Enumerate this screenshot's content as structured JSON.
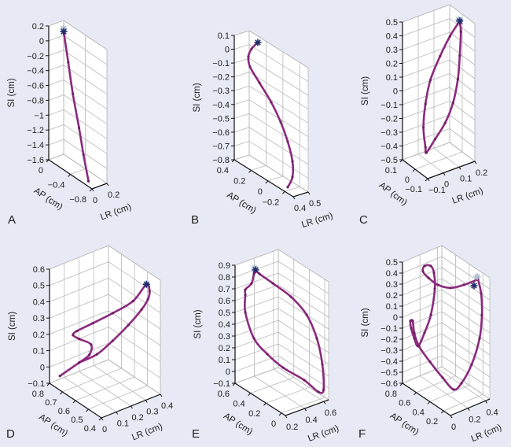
{
  "colors": {
    "background": "#e7eaf4",
    "wall": "#ffffff",
    "grid": "#b9b9b9",
    "axis": "#111111",
    "trajectory": "#8c2a7d",
    "start_star": "#a9bccd",
    "end_star": "#1f2a6b"
  },
  "chart_data": [
    {
      "type": "line3d",
      "panel_label": "A",
      "si": {
        "label": "SI (cm)",
        "range": [
          -1.6,
          0.2
        ],
        "ticks": [
          0.2,
          0,
          -0.2,
          -0.4,
          -0.6,
          -0.8,
          -1,
          -1.2,
          -1.4,
          -1.6
        ],
        "tick_labels": [
          "0.2",
          "0",
          "−0.2",
          "−0.4",
          "−0.6",
          "−0.8",
          "−1",
          "−1.2",
          "−1.4",
          "−1.6"
        ]
      },
      "ap": {
        "label": "AP (cm)",
        "range": [
          0,
          -0.8
        ],
        "ticks": [
          0,
          -0.4,
          -0.8
        ],
        "tick_labels": [
          "0",
          "−0.4",
          "−0.8"
        ]
      },
      "lr": {
        "label": "LR (cm)",
        "range": [
          0,
          0.2
        ],
        "ticks": [
          0,
          0.2
        ],
        "tick_labels": [
          "0",
          "0.2"
        ]
      },
      "grid": true,
      "trajectory": [
        [
          0.2,
          0,
          0.05
        ],
        [
          0.16,
          -0.14,
          -0.28
        ],
        [
          0.12,
          -0.28,
          -0.62
        ],
        [
          0.08,
          -0.45,
          -0.98
        ],
        [
          0.06,
          -0.56,
          -1.28
        ],
        [
          0.04,
          -0.68,
          -1.57
        ]
      ],
      "markers": [
        {
          "type": "light-star",
          "point": [
            0.2,
            0,
            0.09
          ]
        },
        {
          "type": "dark-star",
          "point": [
            0.2,
            0,
            0.05
          ]
        }
      ]
    },
    {
      "type": "line3d",
      "panel_label": "B",
      "si": {
        "label": "SI (cm)",
        "range": [
          -0.8,
          0.1
        ],
        "ticks": [
          0.1,
          0,
          -0.1,
          -0.2,
          -0.3,
          -0.4,
          -0.5,
          -0.6,
          -0.7,
          -0.8
        ],
        "tick_labels": [
          "0.1",
          "0",
          "−0.1",
          "−0.2",
          "−0.3",
          "−0.4",
          "−0.5",
          "−0.6",
          "−0.7",
          "−0.8"
        ]
      },
      "ap": {
        "label": "AP (cm)",
        "range": [
          0.4,
          -0.3
        ],
        "ticks": [
          0.4,
          0.2,
          0,
          -0.2
        ],
        "tick_labels": [
          "0.4",
          "0.2",
          "0",
          "−0.2"
        ]
      },
      "lr": {
        "label": "LR (cm)",
        "range": [
          0.4,
          0.5
        ],
        "ticks": [
          0.4,
          0.5
        ],
        "tick_labels": [
          "0.4",
          "0.5"
        ]
      },
      "grid": true,
      "trajectory": [
        [
          0.45,
          0.209,
          0.105
        ],
        [
          0.45,
          0.283,
          0.031
        ],
        [
          0.45,
          0.321,
          -0.04
        ],
        [
          0.45,
          0.302,
          -0.107
        ],
        [
          0.45,
          0.19,
          -0.179
        ],
        [
          0.45,
          0.05,
          -0.267
        ],
        [
          0.45,
          -0.062,
          -0.367
        ],
        [
          0.45,
          -0.146,
          -0.477
        ],
        [
          0.45,
          -0.202,
          -0.598
        ],
        [
          0.45,
          -0.202,
          -0.712
        ],
        [
          0.45,
          -0.146,
          -0.807
        ]
      ],
      "markers": [
        {
          "type": "dark-star",
          "point": [
            0.45,
            0.209,
            0.105
          ]
        }
      ]
    },
    {
      "type": "line3d",
      "panel_label": "C",
      "si": {
        "label": "SI (cm)",
        "range": [
          -0.5,
          0.5
        ],
        "ticks": [
          0.5,
          0.4,
          0.3,
          0.2,
          0.1,
          0,
          -0.1,
          -0.2,
          -0.3,
          -0.4,
          -0.5
        ],
        "tick_labels": [
          "0.5",
          "0.4",
          "0.3",
          "0.2",
          "0.1",
          "0",
          "−0.1",
          "−0.2",
          "−0.3",
          "−0.4",
          "−0.5"
        ]
      },
      "ap": {
        "label": "AP (cm)",
        "range": [
          0.1,
          -0.1
        ],
        "ticks": [
          0.1,
          0,
          -0.1
        ],
        "tick_labels": [
          "0.1",
          "0",
          "−0.1"
        ]
      },
      "lr": {
        "label": "LR (cm)",
        "range": [
          -0.1,
          0.2
        ],
        "ticks": [
          -0.1,
          0,
          0.1,
          0.2
        ],
        "tick_labels": [
          "−0.1",
          "0",
          "0.1",
          "0.2"
        ]
      },
      "grid": true,
      "trajectory": [
        [
          0.184,
          0,
          0.457
        ],
        [
          0.122,
          0,
          0.373
        ],
        [
          0.059,
          0,
          0.254
        ],
        [
          -0.003,
          0,
          0.106
        ],
        [
          -0.034,
          0,
          -0.054
        ],
        [
          -0.047,
          0,
          -0.22
        ],
        [
          -0.034,
          0,
          -0.368
        ],
        [
          -0.028,
          0,
          -0.41
        ],
        [
          0.028,
          0,
          -0.334
        ],
        [
          0.091,
          0,
          -0.244
        ],
        [
          0.141,
          0,
          -0.12
        ],
        [
          0.172,
          0,
          0.039
        ],
        [
          0.184,
          0,
          0.206
        ],
        [
          0.191,
          0,
          0.375
        ],
        [
          0.184,
          0,
          0.457
        ]
      ],
      "markers": [
        {
          "type": "light-star",
          "point": [
            0.178,
            0,
            0.47
          ]
        },
        {
          "type": "dark-star",
          "point": [
            0.184,
            0,
            0.457
          ]
        }
      ]
    },
    {
      "type": "line3d",
      "panel_label": "D",
      "si": {
        "label": "SI (cm)",
        "range": [
          -0.1,
          0.6
        ],
        "ticks": [
          0.6,
          0.5,
          0.4,
          0.3,
          0.2,
          0.1,
          0,
          -0.1
        ],
        "tick_labels": [
          "0.6",
          "0.5",
          "0.4",
          "0.3",
          "0.2",
          "0.1",
          "0",
          "−0.1"
        ]
      },
      "ap": {
        "label": "AP (cm)",
        "range": [
          0.8,
          0.4
        ],
        "ticks": [
          0.8,
          0.7,
          0.6,
          0.5,
          0.4
        ],
        "tick_labels": [
          "0.8",
          "0.7",
          "0.6",
          "0.5",
          "0.4"
        ]
      },
      "lr": {
        "label": "LR (cm)",
        "range": [
          0,
          0.4
        ],
        "ticks": [
          0,
          0.1,
          0.2,
          0.3,
          0.4
        ],
        "tick_labels": [
          "0",
          "0.1",
          "0.2",
          "0.3",
          "0.4"
        ]
      },
      "grid": true,
      "trajectory": [
        [
          0,
          0.72,
          -0.013
        ],
        [
          0.131,
          0.72,
          0.022
        ],
        [
          0.2,
          0.72,
          0.045
        ],
        [
          0.211,
          0.72,
          0.104
        ],
        [
          0.131,
          0.72,
          0.167
        ],
        [
          0.089,
          0.72,
          0.206
        ],
        [
          0.115,
          0.72,
          0.221
        ],
        [
          0.222,
          0.72,
          0.23
        ],
        [
          0.36,
          0.72,
          0.243
        ],
        [
          0.356,
          0.56,
          0.403
        ],
        [
          0.376,
          0.48,
          0.541
        ],
        [
          0.397,
          0.48,
          0.49
        ],
        [
          0.386,
          0.48,
          0.445
        ],
        [
          0.343,
          0.48,
          0.398
        ],
        [
          0.253,
          0.48,
          0.335
        ],
        [
          0.146,
          0.48,
          0.277
        ],
        [
          0.04,
          0.48,
          0.233
        ],
        [
          0.131,
          0.72,
          0.022
        ]
      ],
      "markers": [
        {
          "type": "dark-star",
          "point": [
            0.376,
            0.48,
            0.541
          ]
        }
      ]
    },
    {
      "type": "line3d",
      "panel_label": "E",
      "si": {
        "label": "SI (cm)",
        "range": [
          -0.1,
          0.9
        ],
        "ticks": [
          0.9,
          0.8,
          0.7,
          0.6,
          0.5,
          0.4,
          0.3,
          0.2,
          0.1,
          0,
          -0.1
        ],
        "tick_labels": [
          "0.9",
          "0.8",
          "0.7",
          "0.6",
          "0.5",
          "0.4",
          "0.3",
          "0.2",
          "0.1",
          "0",
          "−0.1"
        ]
      },
      "ap": {
        "label": "AP (cm)",
        "range": [
          0.6,
          -0.05
        ],
        "ticks": [
          0.6,
          0.4,
          0.2,
          0
        ],
        "tick_labels": [
          "0.6",
          "0.4",
          "0.2",
          "0"
        ]
      },
      "lr": {
        "label": "LR (cm)",
        "range": [
          0.2,
          0.65
        ],
        "ticks": [
          0.2,
          0.4,
          0.6
        ],
        "tick_labels": [
          "0.2",
          "0.4",
          "0.6"
        ]
      },
      "grid": true,
      "trajectory": [
        [
          0.308,
          0.47,
          0.883
        ],
        [
          0.349,
          0.47,
          0.837
        ],
        [
          0.279,
          0.21,
          0.887
        ],
        [
          0.362,
          0.08,
          0.804
        ],
        [
          0.526,
          0.08,
          0.602
        ],
        [
          0.632,
          0.08,
          0.371
        ],
        [
          0.637,
          0.015,
          0.177
        ],
        [
          0.65,
          0.015,
          -0.041
        ],
        [
          0.648,
          0.08,
          -0.087
        ],
        [
          0.501,
          0.08,
          0.056
        ],
        [
          0.28,
          0.08,
          0.228
        ],
        [
          0.431,
          0.47,
          0.133
        ],
        [
          0.292,
          0.47,
          0.307
        ],
        [
          0.202,
          0.47,
          0.555
        ],
        [
          0.202,
          0.47,
          0.701
        ],
        [
          0.202,
          0.47,
          0.747
        ],
        [
          0.267,
          0.47,
          0.781
        ],
        [
          0.292,
          0.47,
          0.854
        ],
        [
          0.308,
          0.47,
          0.883
        ]
      ],
      "markers": [
        {
          "type": "light-star",
          "point": [
            0.3,
            0.47,
            0.9
          ]
        },
        {
          "type": "dark-star",
          "point": [
            0.308,
            0.47,
            0.883
          ]
        }
      ]
    },
    {
      "type": "line3d",
      "panel_label": "F",
      "si": {
        "label": "SI (cm)",
        "range": [
          -0.6,
          0.5
        ],
        "ticks": [
          0.5,
          0.4,
          0.3,
          0.2,
          0.1,
          0,
          -0.1,
          -0.2,
          -0.3,
          -0.4,
          -0.5,
          -0.6
        ],
        "tick_labels": [
          "0.5",
          "0.4",
          "0.3",
          "0.2",
          "0.1",
          "0",
          "−0.1",
          "−0.2",
          "−0.3",
          "−0.4",
          "−0.5",
          "−0.6"
        ]
      },
      "ap": {
        "label": "AP (cm)",
        "range": [
          0.8,
          0.1
        ],
        "ticks": [
          0.8,
          0.6,
          0.4,
          0.2
        ],
        "tick_labels": [
          "0.8",
          "0.6",
          "0.4",
          "0.2"
        ]
      },
      "lr": {
        "label": "LR (cm)",
        "range": [
          0,
          0.45
        ],
        "ticks": [
          0,
          0.2,
          0.4
        ],
        "tick_labels": [
          "0",
          "0.2",
          "0.4"
        ]
      },
      "grid": true,
      "trajectory": [
        [
          0.37,
          0.17,
          0.483
        ],
        [
          0.208,
          0.17,
          0.487
        ],
        [
          0.275,
          0.45,
          0.32
        ],
        [
          0.131,
          0.45,
          0.396
        ],
        [
          0.022,
          0.45,
          0.496
        ],
        [
          0.124,
          0.66,
          0.432
        ],
        [
          0.142,
          0.66,
          0.476
        ],
        [
          0.05,
          0.45,
          0.594
        ],
        [
          0.086,
          0.45,
          0.518
        ],
        [
          0.095,
          0.45,
          0.372
        ],
        [
          0.05,
          0.45,
          0.151
        ],
        [
          0.142,
          0.66,
          -0.131
        ],
        [
          0.07,
          0.66,
          -0.228
        ],
        [
          0.025,
          0.66,
          -0.143
        ],
        [
          0.044,
          0.73,
          -0.085
        ],
        [
          0.035,
          0.73,
          -0.018
        ],
        [
          0.007,
          0.66,
          0.021
        ],
        [
          0.025,
          0.66,
          -0.093
        ],
        [
          0.079,
          0.66,
          -0.232
        ],
        [
          0.041,
          0.45,
          -0.274
        ],
        [
          0.185,
          0.45,
          -0.465
        ],
        [
          0.311,
          0.45,
          -0.614
        ],
        [
          0.4,
          0.45,
          -0.587
        ],
        [
          0.298,
          0.17,
          -0.264
        ],
        [
          0.388,
          0.17,
          -0.059
        ],
        [
          0.415,
          0.17,
          0.147
        ],
        [
          0.406,
          0.17,
          0.343
        ],
        [
          0.37,
          0.17,
          0.483
        ]
      ],
      "markers": [
        {
          "type": "light-star",
          "point": [
            0.361,
            0.17,
            0.51
          ]
        },
        {
          "type": "dark-star",
          "point": [
            0.325,
            0.17,
            0.441
          ]
        }
      ]
    }
  ]
}
